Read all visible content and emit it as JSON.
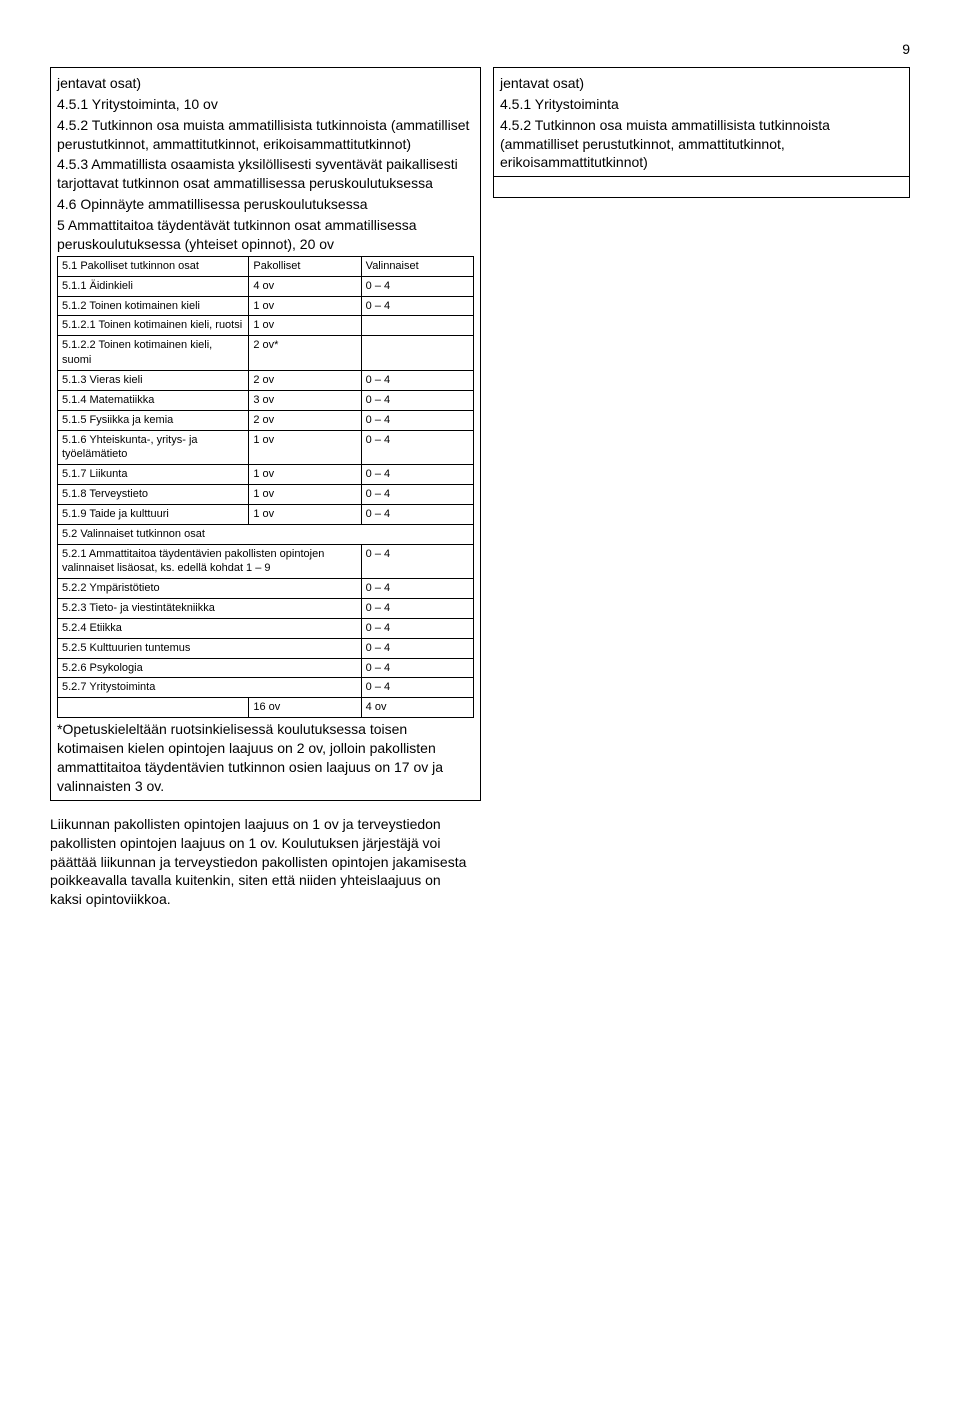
{
  "page_number": "9",
  "left": {
    "l1": "jentavat osat)",
    "l2": "4.5.1 Yritystoiminta, 10 ov",
    "l3": "4.5.2 Tutkinnon osa muista ammatillisista tutkinnoista (ammatilliset perustutkinnot, ammattitutkinnot, erikoisammattitutkinnot)",
    "l4": "4.5.3 Ammatillista osaamista yksilöllisesti syventävät paikallisesti tarjottavat tutkinnon osat ammatillisessa peruskoulutuksessa",
    "l5": "4.6 Opinnäyte ammatillisessa peruskoulutuksessa",
    "l6": "5 Ammattitaitoa täydentävät tutkinnon osat ammatillisessa peruskoulutuksessa (yhteiset opinnot), 20 ov",
    "th1": "5.1 Pakolliset tutkinnon osat",
    "th2": "Pakolliset",
    "th3": "Valinnaiset",
    "r": [
      {
        "a": "5.1.1 Äidinkieli",
        "b": "4 ov",
        "c": "0 – 4"
      },
      {
        "a": "5.1.2 Toinen kotimainen kieli",
        "b": "1 ov",
        "c": "0 – 4"
      },
      {
        "a": "5.1.2.1 Toinen kotimainen kieli, ruotsi",
        "b": "1 ov",
        "c": ""
      },
      {
        "a": "5.1.2.2 Toinen kotimainen kieli, suomi",
        "b": "2 ov*",
        "c": ""
      },
      {
        "a": "5.1.3 Vieras kieli",
        "b": "2 ov",
        "c": "0 – 4"
      },
      {
        "a": "5.1.4 Matematiikka",
        "b": "3 ov",
        "c": "0 – 4"
      },
      {
        "a": "5.1.5 Fysiikka ja kemia",
        "b": "2 ov",
        "c": "0 – 4"
      },
      {
        "a": "5.1.6 Yhteiskunta-, yritys- ja työelämätieto",
        "b": "1 ov",
        "c": "0 – 4"
      },
      {
        "a": "5.1.7 Liikunta",
        "b": "1 ov",
        "c": "0 – 4"
      },
      {
        "a": "5.1.8 Terveystieto",
        "b": "1 ov",
        "c": "0 – 4"
      },
      {
        "a": "5.1.9 Taide ja kulttuuri",
        "b": "1 ov",
        "c": "0 – 4"
      }
    ],
    "sec52": "5.2 Valinnaiset tutkinnon osat",
    "r2": [
      {
        "a": "5.2.1 Ammattitaitoa täydentävien pakollisten opintojen valinnaiset lisäosat, ks. edellä kohdat 1 – 9",
        "c": "0 – 4"
      },
      {
        "a": "5.2.2 Ympäristötieto",
        "c": "0 – 4"
      },
      {
        "a": "5.2.3 Tieto- ja viestintätekniikka",
        "c": "0 – 4"
      },
      {
        "a": "5.2.4 Etiikka",
        "c": "0 – 4"
      },
      {
        "a": "5.2.5 Kulttuurien tuntemus",
        "c": "0 – 4"
      },
      {
        "a": "5.2.6 Psykologia",
        "c": "0 – 4"
      },
      {
        "a": "5.2.7 Yritystoiminta",
        "c": "0 – 4"
      }
    ],
    "total_b": "16 ov",
    "total_c": "4 ov",
    "note": "*Opetuskieleltään ruotsinkielisessä koulutuksessa toisen kotimaisen kielen opintojen laajuus on 2 ov, jolloin pakollisten ammattitaitoa täydentävien tutkinnon osien laajuus on 17 ov ja valinnaisten 3 ov."
  },
  "right": {
    "r1": "jentavat osat)",
    "r2": "4.5.1 Yritystoiminta",
    "r3": "4.5.2 Tutkinnon osa muista ammatillisista tutkinnoista (ammatilliset perustutkinnot, ammattitutkinnot, erikoisammattitutkinnot)"
  },
  "bottom": "Liikunnan pakollisten opintojen laajuus on 1 ov ja terveystiedon pakollisten opintojen laajuus on 1 ov. Koulutuksen järjestäjä voi päättää liikunnan ja terveystiedon pakollisten opintojen jakamisesta poikkeavalla tavalla kuitenkin, siten että niiden yhteislaajuus on kaksi opintoviikkoa."
}
